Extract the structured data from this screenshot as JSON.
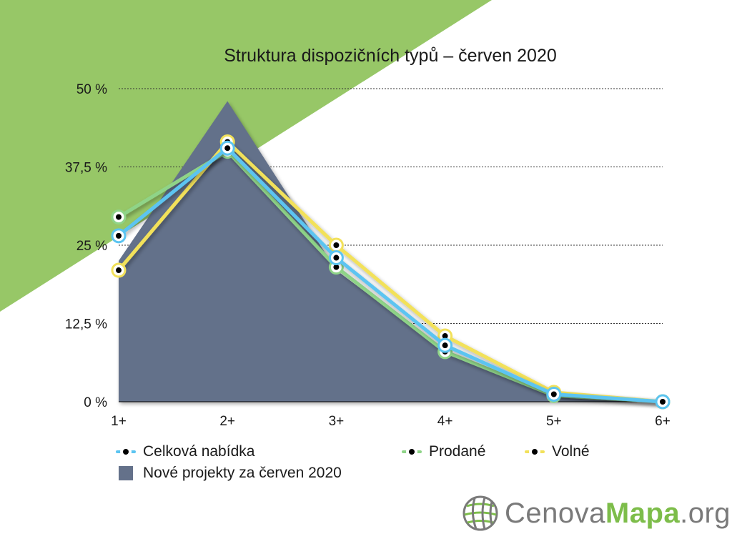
{
  "chart_data": {
    "type": "line",
    "title": "Struktura dispozičních typů – červen 2020",
    "categories": [
      "1+",
      "2+",
      "3+",
      "4+",
      "5+",
      "6+"
    ],
    "y_ticks": [
      "0 %",
      "12,5 %",
      "25 %",
      "37,5 %",
      "50 %"
    ],
    "ylim": [
      0,
      50
    ],
    "grid": true,
    "series": [
      {
        "name": "Nové projekty za červen 2020",
        "kind": "area",
        "color": "#64718a",
        "values": [
          22.5,
          48,
          21,
          8,
          0.8,
          0
        ]
      },
      {
        "name": "Prodané",
        "kind": "line",
        "color": "#8fd488",
        "values": [
          29.5,
          40,
          21.5,
          8,
          1,
          0
        ]
      },
      {
        "name": "Volné",
        "kind": "line",
        "color": "#f2e15a",
        "values": [
          21,
          41.5,
          25,
          10.5,
          1.5,
          0
        ]
      },
      {
        "name": "Celková nabídka",
        "kind": "line",
        "color": "#5bc4f1",
        "values": [
          26.5,
          40.5,
          23,
          9,
          1.2,
          0
        ]
      }
    ],
    "legend_position": "bottom"
  },
  "legend": {
    "total_label": "Celková nabídka",
    "sold_label": "Prodané",
    "free_label": "Volné",
    "new_label": "Nové projekty za červen 2020"
  },
  "colors": {
    "background_accent": "#97c767",
    "area": "#64718a",
    "total": "#5bc4f1",
    "sold": "#8fd488",
    "free": "#f2e15a"
  },
  "logo": {
    "icon": "globe-grid-icon",
    "name_part": "Cenova",
    "accent_part": "Mapa",
    "suffix": ".org"
  }
}
